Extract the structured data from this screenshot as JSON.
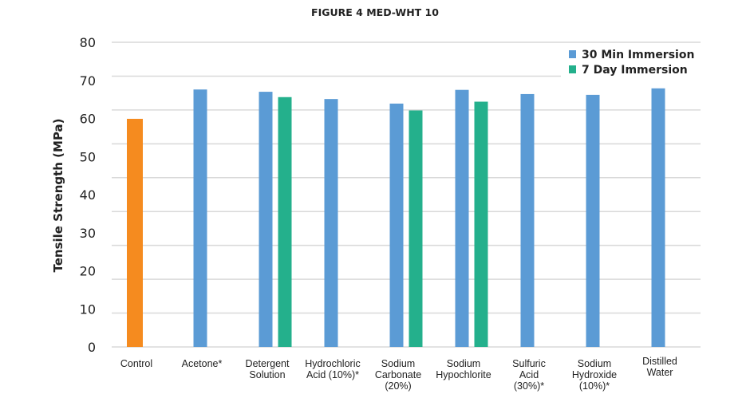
{
  "chart_data": {
    "type": "bar",
    "title": "FIGURE 4 MED-WHT 10",
    "xlabel": "",
    "ylabel": "Tensile Strength (MPa)",
    "ylim": [
      0,
      80
    ],
    "yticks": [
      "0",
      "10",
      "20",
      "30",
      "40",
      "50",
      "60",
      "70",
      "80"
    ],
    "grid": true,
    "legend_position": "top-right",
    "categories": [
      [
        "Control"
      ],
      [
        "Acetone*"
      ],
      [
        "Detergent",
        "Solution"
      ],
      [
        "Hydrochloric",
        "Acid (10%)*"
      ],
      [
        "Sodium",
        "Carbonate",
        "(20%)"
      ],
      [
        "Sodium",
        "Hypochlorite"
      ],
      [
        "Sulfuric",
        "Acid",
        "(30%)*"
      ],
      [
        "Sodium",
        "Hydroxide",
        "(10%)*"
      ],
      [
        "Distilled",
        "Water"
      ]
    ],
    "series": [
      {
        "name": "30 Min Immersion",
        "color": "#5b9bd5",
        "values": [
          59.9,
          67.6,
          67.0,
          65.1,
          63.9,
          67.5,
          66.4,
          66.2,
          67.9
        ]
      },
      {
        "name": "7 Day Immersion",
        "color": "#24b08c",
        "values": [
          null,
          null,
          65.6,
          null,
          62.1,
          64.4,
          null,
          null,
          null
        ]
      }
    ],
    "highlight": {
      "category_index": 0,
      "color": "#f58b1f"
    }
  }
}
